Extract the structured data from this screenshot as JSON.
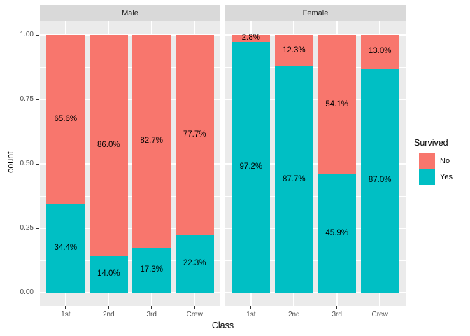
{
  "chart_data": {
    "type": "bar",
    "stacked": true,
    "position": "fill",
    "title": "",
    "xlabel": "Class",
    "ylabel": "count",
    "ylim": [
      0,
      1
    ],
    "grid": true,
    "y_ticks": [
      "1.00",
      "0.75",
      "0.50",
      "0.25",
      "0.00"
    ],
    "y_minor_ticks": [
      0.125,
      0.375,
      0.625,
      0.875
    ],
    "categories": [
      "1st",
      "2nd",
      "3rd",
      "Crew"
    ],
    "facets": [
      {
        "label": "Male",
        "series": [
          {
            "name": "No",
            "values": [
              65.6,
              86.0,
              82.7,
              77.7
            ]
          },
          {
            "name": "Yes",
            "values": [
              34.4,
              14.0,
              17.3,
              22.3
            ]
          }
        ]
      },
      {
        "label": "Female",
        "series": [
          {
            "name": "No",
            "values": [
              2.8,
              12.3,
              54.1,
              13.0
            ]
          },
          {
            "name": "Yes",
            "values": [
              97.2,
              87.7,
              45.9,
              87.0
            ]
          }
        ]
      }
    ],
    "bar_label_format": "percent-1-decimal",
    "legend": {
      "title": "Survived",
      "position": "right",
      "entries": [
        {
          "label": "No",
          "color": "#F8766D"
        },
        {
          "label": "Yes",
          "color": "#00BFC4"
        }
      ]
    }
  },
  "colors": {
    "no_fill": "#F8766D",
    "yes_fill": "#00BFC4",
    "panel_background": "#EBEBEB",
    "strip_background": "#D9D9D9",
    "gridline": "#FFFFFF",
    "axis_text": "#4D4D4D",
    "tick_mark": "#333333",
    "label_text": "#000000"
  }
}
